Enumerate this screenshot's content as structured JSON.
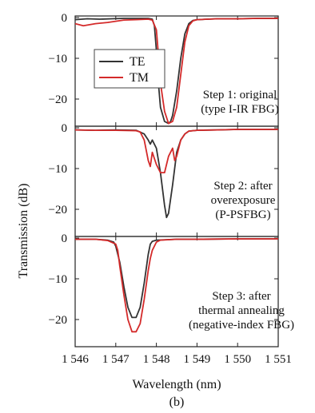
{
  "figure_caption": "(b)",
  "chart_data": {
    "type": "line",
    "xlabel": "Wavelength (nm)",
    "ylabel": "Transmission (dB)",
    "xlim": [
      1546,
      1551
    ],
    "x_tick_labels": [
      "1 546",
      "1 547",
      "1 548",
      "1 549",
      "1 550",
      "1 551"
    ],
    "x_ticks": [
      1546,
      1547,
      1548,
      1549,
      1550,
      1551
    ],
    "legend": {
      "placement": "top-left of first panel",
      "entries": [
        {
          "name": "TE",
          "color": "#333333"
        },
        {
          "name": "TM",
          "color": "#d42a2a"
        }
      ]
    },
    "panels": [
      {
        "annotation": [
          "Step 1: original",
          "(type I-IR FBG)"
        ],
        "ylim": [
          -26,
          0
        ],
        "y_ticks": [
          0,
          -10,
          -20
        ],
        "y_tick_labels": [
          "0",
          "−10",
          "−20"
        ],
        "series": [
          {
            "name": "TE",
            "color": "#333333",
            "x": [
              1546.0,
              1546.3,
              1546.6,
              1546.9,
              1547.2,
              1547.5,
              1547.8,
              1547.9,
              1547.95,
              1548.0,
              1548.05,
              1548.1,
              1548.2,
              1548.3,
              1548.35,
              1548.4,
              1548.5,
              1548.6,
              1548.7,
              1548.8,
              1548.9,
              1549.0,
              1549.5,
              1550.0,
              1550.5,
              1551.0
            ],
            "y": [
              -0.5,
              -0.3,
              -0.4,
              -0.3,
              -0.2,
              -0.2,
              -0.2,
              -0.4,
              -2,
              -8,
              -16,
              -22,
              -25.5,
              -26,
              -25.5,
              -24,
              -18,
              -10,
              -4,
              -1.5,
              -0.7,
              -0.5,
              -0.3,
              -0.3,
              -0.2,
              -0.2
            ]
          },
          {
            "name": "TM",
            "color": "#d42a2a",
            "x": [
              1546.0,
              1546.2,
              1546.5,
              1546.8,
              1547.2,
              1547.5,
              1547.8,
              1547.9,
              1548.0,
              1548.05,
              1548.1,
              1548.2,
              1548.3,
              1548.4,
              1548.5,
              1548.6,
              1548.7,
              1548.8,
              1548.9,
              1549.0,
              1549.5,
              1550.0,
              1550.5,
              1551.0
            ],
            "y": [
              -1.5,
              -2,
              -1.5,
              -1.2,
              -0.6,
              -0.5,
              -0.4,
              -0.6,
              -3,
              -9,
              -16,
              -23,
              -26,
              -25.5,
              -22,
              -14,
              -6,
              -2,
              -0.8,
              -0.5,
              -0.3,
              -0.3,
              -0.2,
              -0.2
            ]
          }
        ]
      },
      {
        "annotation": [
          "Step 2: after",
          "overexposure",
          "(P-PSFBG)"
        ],
        "ylim": [
          -26,
          0
        ],
        "y_ticks": [
          0,
          -10,
          -20
        ],
        "y_tick_labels": [
          "0",
          "−10",
          "−20"
        ],
        "series": [
          {
            "name": "TE",
            "color": "#333333",
            "x": [
              1546.0,
              1546.5,
              1547.0,
              1547.5,
              1547.7,
              1547.8,
              1547.85,
              1547.9,
              1548.0,
              1548.1,
              1548.2,
              1548.25,
              1548.3,
              1548.4,
              1548.5,
              1548.6,
              1548.7,
              1548.8,
              1549.0,
              1549.5,
              1550.0,
              1551.0
            ],
            "y": [
              -0.5,
              -0.6,
              -0.5,
              -0.6,
              -1.5,
              -3,
              -4,
              -3,
              -5,
              -11,
              -19,
              -22,
              -21,
              -14,
              -6,
              -3,
              -1.5,
              -0.8,
              -0.6,
              -0.5,
              -0.4,
              -0.4
            ]
          },
          {
            "name": "TM",
            "color": "#d42a2a",
            "x": [
              1546.0,
              1546.5,
              1547.0,
              1547.5,
              1547.6,
              1547.7,
              1547.8,
              1547.85,
              1547.9,
              1548.0,
              1548.1,
              1548.2,
              1548.3,
              1548.4,
              1548.45,
              1548.5,
              1548.6,
              1548.7,
              1548.8,
              1549.0,
              1549.5,
              1550.0,
              1551.0
            ],
            "y": [
              -0.5,
              -0.6,
              -0.6,
              -0.7,
              -1,
              -3,
              -8,
              -9.5,
              -6,
              -9,
              -11,
              -11,
              -7,
              -5,
              -8,
              -7,
              -3,
              -1.5,
              -0.8,
              -0.6,
              -0.5,
              -0.4,
              -0.4
            ]
          }
        ]
      },
      {
        "annotation": [
          "Step 3: after",
          "thermal annealing",
          "(negative-index FBG)"
        ],
        "ylim": [
          -26,
          0
        ],
        "y_ticks": [
          0,
          -10,
          -20
        ],
        "y_tick_labels": [
          "0",
          "−10",
          "−20"
        ],
        "series": [
          {
            "name": "TE",
            "color": "#333333",
            "x": [
              1546.0,
              1546.5,
              1546.8,
              1546.95,
              1547.0,
              1547.1,
              1547.2,
              1547.3,
              1547.4,
              1547.5,
              1547.6,
              1547.7,
              1547.8,
              1547.85,
              1547.9,
              1548.0,
              1548.5,
              1549.0,
              1550.0,
              1551.0
            ],
            "y": [
              -0.3,
              -0.3,
              -0.5,
              -1,
              -2,
              -6,
              -12,
              -17,
              -19.5,
              -19.5,
              -17,
              -11,
              -4,
              -1.5,
              -0.8,
              -0.5,
              -0.3,
              -0.3,
              -0.2,
              -0.2
            ]
          },
          {
            "name": "TM",
            "color": "#d42a2a",
            "x": [
              1546.0,
              1546.5,
              1546.8,
              1547.0,
              1547.05,
              1547.1,
              1547.2,
              1547.3,
              1547.4,
              1547.5,
              1547.6,
              1547.7,
              1547.8,
              1547.85,
              1547.9,
              1548.0,
              1548.1,
              1548.5,
              1549.0,
              1550.0,
              1551.0
            ],
            "y": [
              -0.3,
              -0.3,
              -0.6,
              -1.5,
              -3,
              -7,
              -14,
              -20,
              -23,
              -23,
              -21,
              -15,
              -8,
              -5,
              -3,
              -1,
              -0.5,
              -0.3,
              -0.3,
              -0.2,
              -0.2
            ]
          }
        ]
      }
    ]
  }
}
